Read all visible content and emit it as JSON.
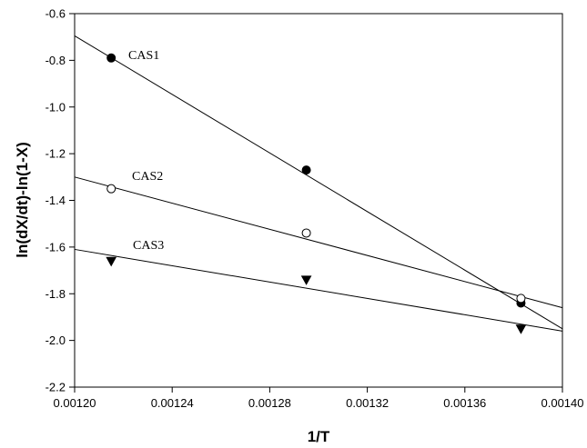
{
  "chart_data": {
    "type": "scatter",
    "xlabel": "1/T",
    "ylabel": "ln(dX/dt)-ln(1-X)",
    "xlim": [
      0.0012,
      0.0014
    ],
    "ylim": [
      -2.2,
      -0.6
    ],
    "x_ticks": [
      "0.00120",
      "0.00124",
      "0.00128",
      "0.00132",
      "0.00136",
      "0.00140"
    ],
    "y_ticks": [
      "-0.6",
      "-0.8",
      "-1.0",
      "-1.2",
      "-1.4",
      "-1.6",
      "-1.8",
      "-2.0",
      "-2.2"
    ],
    "grid": false,
    "series": [
      {
        "name": "CAS1",
        "marker": "filled-circle",
        "x": [
          0.001215,
          0.001295,
          0.001383
        ],
        "y": [
          -0.79,
          -1.27,
          -1.84
        ],
        "fit": {
          "x": [
            0.0012,
            0.0014
          ],
          "y": [
            -0.695,
            -1.95
          ]
        }
      },
      {
        "name": "CAS2",
        "marker": "open-circle",
        "x": [
          0.001215,
          0.001295,
          0.001383
        ],
        "y": [
          -1.35,
          -1.54,
          -1.82
        ],
        "fit": {
          "x": [
            0.0012,
            0.0014
          ],
          "y": [
            -1.3,
            -1.86
          ]
        }
      },
      {
        "name": "CAS3",
        "marker": "filled-triangle-down",
        "x": [
          0.001215,
          0.001295,
          0.001383
        ],
        "y": [
          -1.66,
          -1.74,
          -1.95
        ],
        "fit": {
          "x": [
            0.0012,
            0.0014
          ],
          "y": [
            -1.61,
            -1.96
          ]
        }
      }
    ]
  }
}
